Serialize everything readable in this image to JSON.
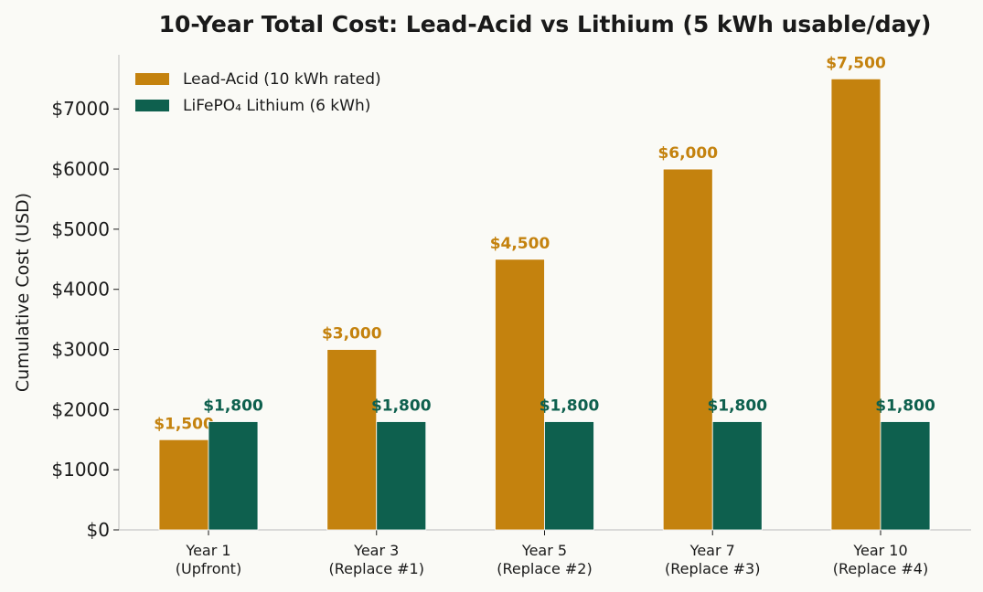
{
  "chart_data": {
    "type": "bar",
    "title": "10-Year Total Cost: Lead-Acid vs Lithium (5 kWh usable/day)",
    "xlabel": "",
    "ylabel": "Cumulative Cost (USD)",
    "ylim": [
      0,
      7900
    ],
    "yticks": [
      0,
      1000,
      2000,
      3000,
      4000,
      5000,
      6000,
      7000
    ],
    "ytick_labels": [
      "$0",
      "$1000",
      "$2000",
      "$3000",
      "$4000",
      "$5000",
      "$6000",
      "$7000"
    ],
    "grid": false,
    "legend_position": "top-left",
    "categories": [
      [
        "Year 1",
        "(Upfront)"
      ],
      [
        "Year 3",
        "(Replace #1)"
      ],
      [
        "Year 5",
        "(Replace #2)"
      ],
      [
        "Year 7",
        "(Replace #3)"
      ],
      [
        "Year 10",
        "(Replace #4)"
      ]
    ],
    "series": [
      {
        "name": "Lead-Acid (10 kWh rated)",
        "color": "#c4820e",
        "values": [
          1500,
          3000,
          4500,
          6000,
          7500
        ],
        "labels": [
          "$1,500",
          "$3,000",
          "$4,500",
          "$6,000",
          "$7,500"
        ]
      },
      {
        "name": "LiFePO₄ Lithium (6 kWh)",
        "color": "#0e604e",
        "values": [
          1800,
          1800,
          1800,
          1800,
          1800
        ],
        "labels": [
          "$1,800",
          "$1,800",
          "$1,800",
          "$1,800",
          "$1,800"
        ]
      }
    ]
  }
}
